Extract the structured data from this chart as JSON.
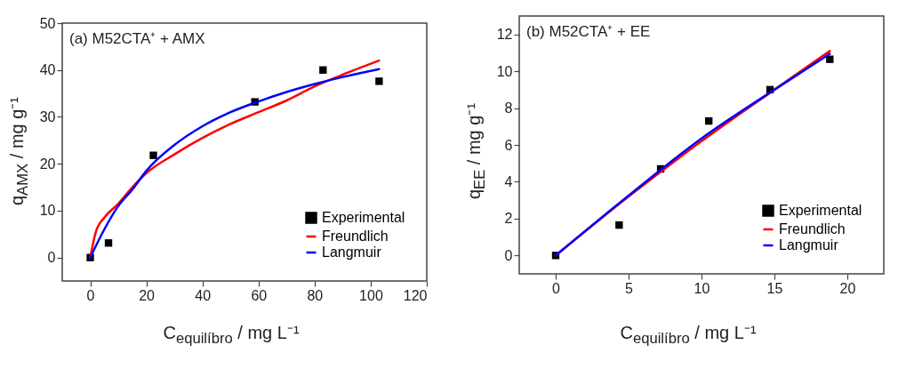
{
  "chart_data": [
    {
      "type": "scatter",
      "xlabel": "C$_{equilíbro}$ / mg L⁻¹",
      "ylabel": "q$_{AMX}$ / mg g⁻¹",
      "annotations": [
        "(a) M52CTA⁺ + AMX"
      ],
      "xlim": [
        -10,
        120
      ],
      "xticks": [
        0,
        20,
        40,
        60,
        80,
        100,
        120
      ],
      "ylim": [
        -5,
        50
      ],
      "yticks": [
        0,
        10,
        20,
        30,
        40,
        50
      ],
      "grid": false,
      "legend": "bottom right",
      "series": [
        {
          "name": "Experimental",
          "marker": "square",
          "color": "#000000",
          "x": [
            0,
            6.5,
            22.5,
            58.7,
            83,
            103
          ],
          "values": [
            0,
            3.1,
            21.8,
            33.2,
            40,
            37.6
          ]
        },
        {
          "name": "Freundlich",
          "type": "line",
          "line_style": "solid",
          "color": "#ff0000",
          "x": [
            0,
            2,
            5,
            10,
            15,
            20,
            30,
            40,
            50,
            60,
            70,
            80,
            90,
            103
          ],
          "values": [
            0,
            5.5,
            8.5,
            11.5,
            15,
            18,
            22,
            25.5,
            28.5,
            31,
            33.5,
            36.5,
            39,
            42
          ]
        },
        {
          "name": "Langmuir",
          "type": "line",
          "line_style": "solid",
          "color": "#0000ff",
          "x": [
            0,
            5,
            10,
            15,
            20,
            30,
            40,
            50,
            60,
            70,
            80,
            90,
            103
          ],
          "values": [
            0,
            6,
            11,
            14.5,
            18.5,
            24,
            28,
            31,
            33.3,
            35.3,
            37,
            38.5,
            40.2
          ]
        }
      ]
    },
    {
      "type": "scatter",
      "xlabel": "C$_{equilíbro}$ / mg L⁻¹",
      "ylabel": "q$_{EE}$ / mg g⁻¹",
      "annotations": [
        "(b) M52CTA⁺ + EE"
      ],
      "xlim": [
        -2.5,
        22.5
      ],
      "xticks": [
        0,
        5,
        10,
        15,
        20
      ],
      "ylim": [
        -1,
        13
      ],
      "yticks": [
        0,
        2,
        4,
        6,
        8,
        10,
        12
      ],
      "grid": false,
      "legend": "bottom right",
      "series": [
        {
          "name": "Experimental",
          "marker": "square",
          "color": "#000000",
          "x": [
            0,
            4.35,
            7.2,
            10.5,
            14.7,
            18.8
          ],
          "values": [
            0,
            1.65,
            4.7,
            7.3,
            9,
            10.65
          ]
        },
        {
          "name": "Freundlich",
          "type": "line",
          "line_style": "solid",
          "color": "#ff0000",
          "x": [
            0,
            5,
            10,
            15,
            18.8
          ],
          "values": [
            0,
            3.2,
            6.2,
            9,
            11.1
          ]
        },
        {
          "name": "Langmuir",
          "type": "line",
          "line_style": "solid",
          "color": "#0000ff",
          "x": [
            0,
            5,
            10,
            15,
            18.8
          ],
          "values": [
            0,
            3.25,
            6.35,
            9,
            10.95
          ]
        }
      ]
    }
  ]
}
